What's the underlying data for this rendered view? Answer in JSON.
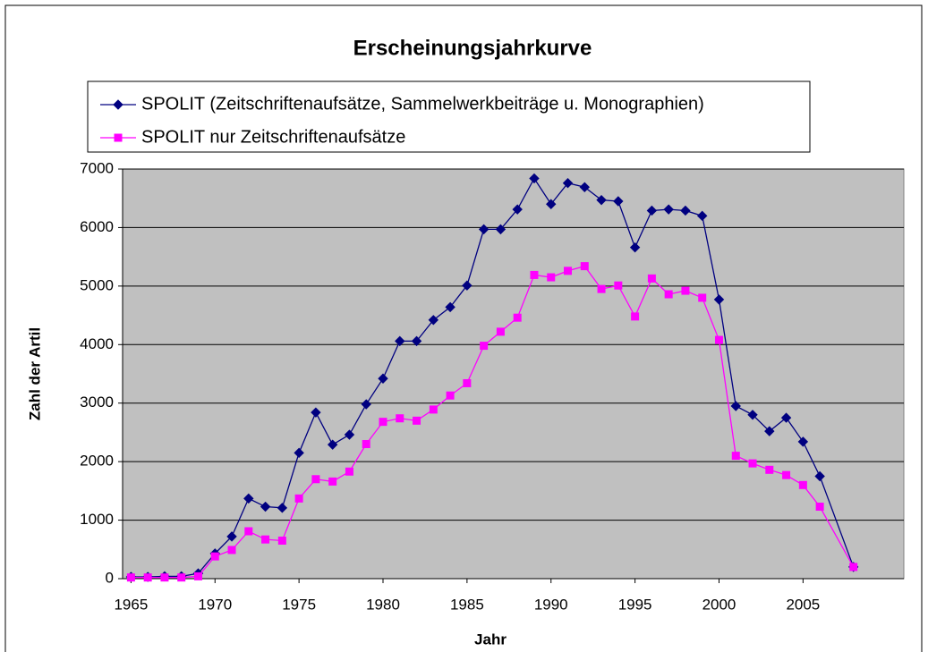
{
  "chart_data": {
    "type": "line",
    "title": "Erscheinungsjahrkurve",
    "x_label": "Jahr",
    "y_label": "Zahl der Artil",
    "x": [
      1965,
      1966,
      1967,
      1968,
      1969,
      1970,
      1971,
      1972,
      1973,
      1974,
      1975,
      1976,
      1977,
      1978,
      1979,
      1980,
      1981,
      1982,
      1983,
      1984,
      1985,
      1986,
      1987,
      1988,
      1989,
      1990,
      1991,
      1992,
      1993,
      1994,
      1995,
      1996,
      1997,
      1998,
      1999,
      2000,
      2001,
      2002,
      2003,
      2004,
      2005,
      2006,
      2008
    ],
    "series": [
      {
        "name": "SPOLIT (Zeitschriftenaufsätze, Sammelwerkbeiträge u. Monographien)",
        "color": "#000080",
        "marker": "diamond",
        "values": [
          30,
          30,
          40,
          40,
          90,
          430,
          720,
          1370,
          1230,
          1210,
          2150,
          2840,
          2290,
          2460,
          2980,
          3420,
          4060,
          4060,
          4420,
          4640,
          5010,
          5970,
          5970,
          6310,
          6840,
          6400,
          6760,
          6690,
          6470,
          6450,
          5660,
          6290,
          6310,
          6290,
          6200,
          4770,
          2950,
          2800,
          2520,
          2750,
          2340,
          1750,
          200
        ]
      },
      {
        "name": "SPOLIT nur Zeitschriftenaufsätze",
        "color": "#ff00ff",
        "marker": "square",
        "values": [
          20,
          20,
          20,
          20,
          40,
          380,
          490,
          810,
          670,
          650,
          1370,
          1700,
          1660,
          1830,
          2300,
          2680,
          2740,
          2700,
          2890,
          3130,
          3340,
          3980,
          4220,
          4460,
          5190,
          5150,
          5260,
          5340,
          4950,
          5010,
          4480,
          5130,
          4860,
          4920,
          4800,
          4080,
          2100,
          1970,
          1860,
          1770,
          1600,
          1230,
          200
        ]
      }
    ],
    "xlim": [
      1964.5,
      2011
    ],
    "xticks": [
      1965,
      1970,
      1975,
      1980,
      1985,
      1990,
      1995,
      2000,
      2005
    ],
    "ylim": [
      0,
      7000
    ],
    "yticks": [
      0,
      1000,
      2000,
      3000,
      4000,
      5000,
      6000,
      7000
    ],
    "grid": true,
    "plot_background": "#c0c0c0"
  }
}
